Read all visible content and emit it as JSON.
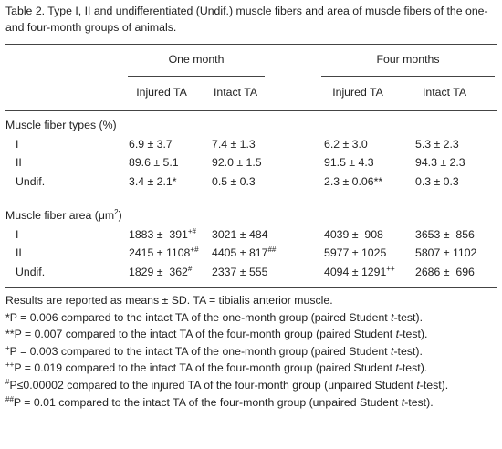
{
  "caption": "Table 2. Type I, II and undifferentiated (Undif.) muscle fibers and area of muscle fibers of the one- and four-month groups of animals.",
  "groups": [
    "One month",
    "Four months"
  ],
  "columns": [
    "Injured TA",
    "Intact TA",
    "Injured TA",
    "Intact TA"
  ],
  "sections": [
    {
      "title": {
        "text": "Muscle fiber types (%)"
      },
      "rows": [
        {
          "label": "I",
          "cells": [
            {
              "text": "6.9 ± 3.7"
            },
            {
              "text": "7.4 ± 1.3"
            },
            {
              "text": "6.2 ± 3.0"
            },
            {
              "text": "5.3 ± 2.3"
            }
          ]
        },
        {
          "label": "II",
          "cells": [
            {
              "text": "89.6 ± 5.1"
            },
            {
              "text": "92.0 ± 1.5"
            },
            {
              "text": "91.5 ± 4.3"
            },
            {
              "text": "94.3 ± 2.3"
            }
          ]
        },
        {
          "label": "Undif.",
          "cells": [
            {
              "text": "3.4 ± 2.1*"
            },
            {
              "text": "0.5 ± 0.3"
            },
            {
              "text": "2.3 ± 0.06**"
            },
            {
              "text": "0.3 ± 0.3"
            }
          ]
        }
      ]
    },
    {
      "title": {
        "text": "Muscle fiber area (μm",
        "sup": "2",
        "tail": ")"
      },
      "rows": [
        {
          "label": "I",
          "cells": [
            {
              "text": "1883 ±  391",
              "sup": "+#"
            },
            {
              "text": "3021 ± 484"
            },
            {
              "text": "4039 ±  908"
            },
            {
              "text": "3653 ±  856"
            }
          ]
        },
        {
          "label": "II",
          "cells": [
            {
              "text": "2415 ± 1108",
              "sup": "+#"
            },
            {
              "text": "4405 ± 817",
              "sup": "##"
            },
            {
              "text": "5977 ± 1025"
            },
            {
              "text": "5807 ± 1102"
            }
          ]
        },
        {
          "label": "Undif.",
          "cells": [
            {
              "text": "1829 ±  362",
              "sup": "#"
            },
            {
              "text": "2337 ± 555"
            },
            {
              "text": "4094 ± 1291",
              "sup": "++"
            },
            {
              "text": "2686 ±  696"
            }
          ]
        }
      ]
    }
  ],
  "footnotes": [
    {
      "text": "Results are reported as means ± SD. TA = tibialis anterior muscle."
    },
    {
      "text": "*P = 0.006 compared to the intact TA of the one-month group (paired Student ",
      "italic": "t",
      "tail": "-test)."
    },
    {
      "text": "**P = 0.007 compared to the intact TA of the four-month group (paired Student ",
      "italic": "t",
      "tail": "-test)."
    },
    {
      "mark": "+",
      "text": "P = 0.003 compared to the intact TA of the one-month group (paired Student ",
      "italic": "t",
      "tail": "-test)."
    },
    {
      "mark": "++",
      "text": "P = 0.019 compared to the intact TA of the four-month group (paired Student ",
      "italic": "t",
      "tail": "-test)."
    },
    {
      "mark": "#",
      "text": "P≤0.00002 compared to the injured TA of the four-month group (unpaired Student ",
      "italic": "t",
      "tail": "-test)."
    },
    {
      "mark": "##",
      "text": "P = 0.01 compared to the intact TA of the four-month group (unpaired Student ",
      "italic": "t",
      "tail": "-test)."
    }
  ]
}
